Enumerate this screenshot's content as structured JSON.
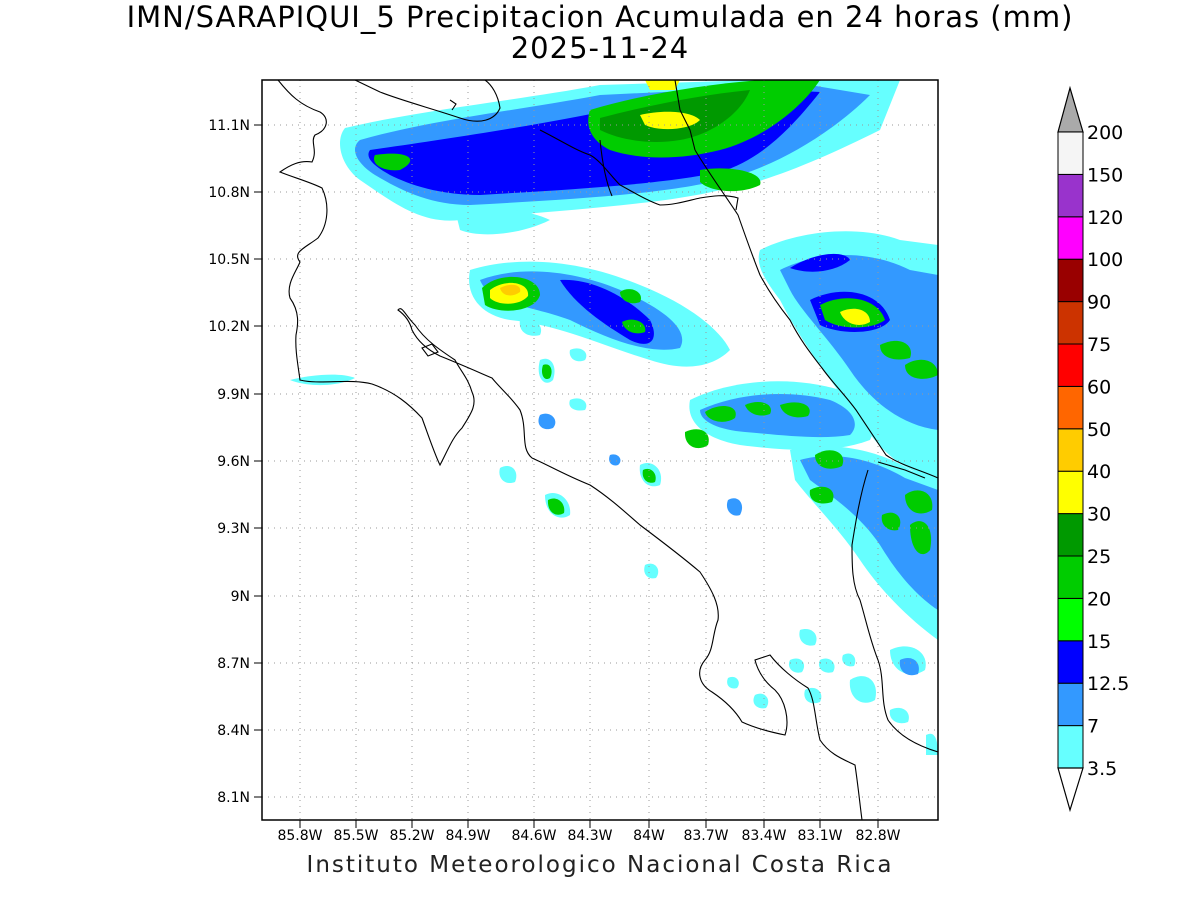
{
  "title": {
    "line1": "IMN/SARAPIQUI_5 Precipitacion Acumulada en 24 horas (mm)",
    "line2": "2025-11-24"
  },
  "footer": "Instituto Meteorologico Nacional Costa Rica",
  "map": {
    "lon_range": [
      -86.0,
      -83.0
    ],
    "lat_range": [
      8.0,
      11.3
    ],
    "x_ticks": [
      "85.8W",
      "85.5W",
      "85.2W",
      "84.9W",
      "84.6W",
      "84.3W",
      "84W",
      "83.7W",
      "83.4W",
      "83.1W",
      "82.8W"
    ],
    "y_ticks": [
      "11.1N",
      "10.8N",
      "10.5N",
      "10.2N",
      "9.9N",
      "9.6N",
      "9.3N",
      "9N",
      "8.7N",
      "8.4N",
      "8.1N"
    ],
    "gridlines": "dotted"
  },
  "colorbar": {
    "levels": [
      "3.5",
      "7",
      "12.5",
      "15",
      "20",
      "25",
      "30",
      "40",
      "50",
      "60",
      "75",
      "90",
      "100",
      "120",
      "150",
      "200"
    ],
    "colors": [
      "#66ffff",
      "#3399ff",
      "#0000ff",
      "#00ff00",
      "#00cc00",
      "#009900",
      "#ffff00",
      "#ffcc00",
      "#ff6600",
      "#ff0000",
      "#cc3300",
      "#990000",
      "#ff00ff",
      "#9933cc",
      "#f5f5f5",
      "#aaaaaa"
    ]
  }
}
